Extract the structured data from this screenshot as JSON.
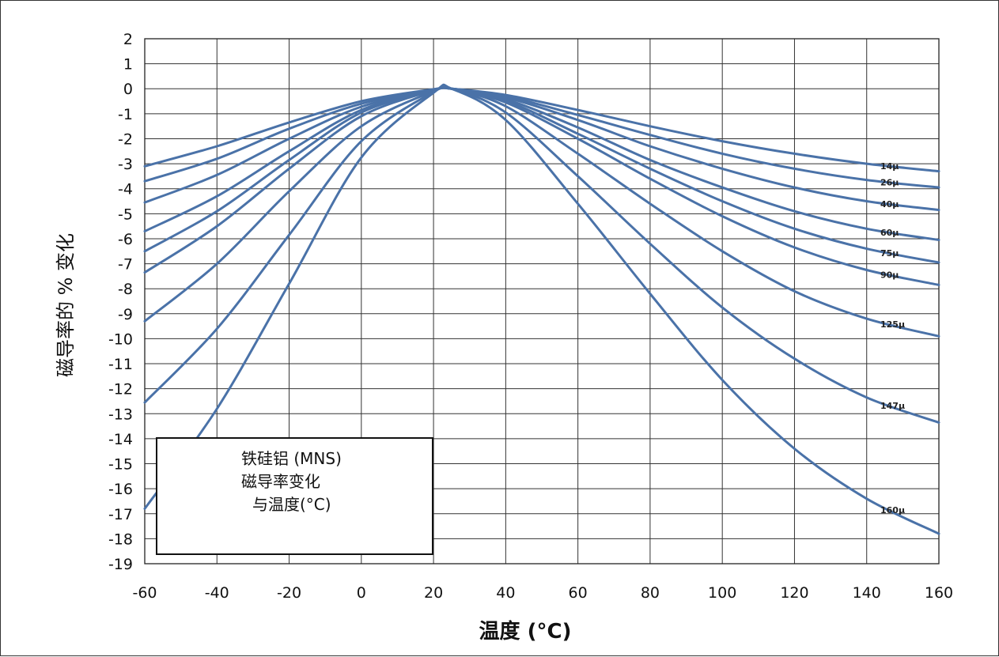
{
  "chart_data": {
    "type": "line",
    "title": "",
    "xlabel": "温度 (°C)",
    "ylabel": "磁导率的 % 变化",
    "xlim": [
      -60,
      160
    ],
    "ylim": [
      -19,
      2
    ],
    "xticks": [
      -60,
      -40,
      -20,
      0,
      20,
      40,
      60,
      80,
      100,
      120,
      140,
      160
    ],
    "yticks": [
      2,
      1,
      0,
      -1,
      -2,
      -3,
      -4,
      -5,
      -6,
      -7,
      -8,
      -9,
      -10,
      -11,
      -12,
      -13,
      -14,
      -15,
      -16,
      -17,
      -18,
      -19
    ],
    "grid": true,
    "line_color": "#4a72a8",
    "annotation": [
      "铁硅铝 (MNS)",
      "磁导率变化",
      "与温度(°C)"
    ],
    "x": [
      -60,
      -40,
      -20,
      0,
      20,
      25,
      40,
      60,
      80,
      100,
      120,
      140,
      160
    ],
    "series": [
      {
        "name": "14μ",
        "values": [
          -3.1,
          -2.3,
          -1.35,
          -0.5,
          -0.02,
          0,
          -0.25,
          -0.85,
          -1.5,
          -2.1,
          -2.6,
          -3.0,
          -3.3
        ]
      },
      {
        "name": "26μ",
        "values": [
          -3.7,
          -2.8,
          -1.6,
          -0.6,
          -0.03,
          0,
          -0.3,
          -1.05,
          -1.85,
          -2.6,
          -3.2,
          -3.65,
          -3.95
        ]
      },
      {
        "name": "40μ",
        "values": [
          -4.55,
          -3.45,
          -2.0,
          -0.72,
          -0.04,
          0,
          -0.35,
          -1.25,
          -2.3,
          -3.2,
          -3.95,
          -4.5,
          -4.85
        ]
      },
      {
        "name": "60μ",
        "values": [
          -5.7,
          -4.3,
          -2.5,
          -0.85,
          -0.05,
          0,
          -0.42,
          -1.55,
          -2.85,
          -3.95,
          -4.9,
          -5.6,
          -6.05
        ]
      },
      {
        "name": "75μ",
        "values": [
          -6.5,
          -4.9,
          -2.85,
          -0.95,
          -0.06,
          0,
          -0.48,
          -1.8,
          -3.2,
          -4.5,
          -5.6,
          -6.4,
          -6.95
        ]
      },
      {
        "name": "90μ",
        "values": [
          -7.35,
          -5.5,
          -3.2,
          -1.1,
          -0.07,
          0,
          -0.55,
          -2.0,
          -3.6,
          -5.1,
          -6.35,
          -7.25,
          -7.85
        ]
      },
      {
        "name": "125μ",
        "values": [
          -9.3,
          -7.0,
          -4.1,
          -1.5,
          -0.1,
          0,
          -0.7,
          -2.6,
          -4.6,
          -6.5,
          -8.1,
          -9.2,
          -9.9
        ]
      },
      {
        "name": "147μ",
        "values": [
          -12.55,
          -9.6,
          -5.85,
          -2.1,
          -0.13,
          0,
          -0.95,
          -3.5,
          -6.2,
          -8.75,
          -10.8,
          -12.35,
          -13.35
        ]
      },
      {
        "name": "160μ",
        "values": [
          -16.8,
          -12.8,
          -7.8,
          -2.75,
          -0.16,
          0,
          -1.25,
          -4.6,
          -8.2,
          -11.65,
          -14.4,
          -16.4,
          -17.8
        ]
      }
    ]
  }
}
